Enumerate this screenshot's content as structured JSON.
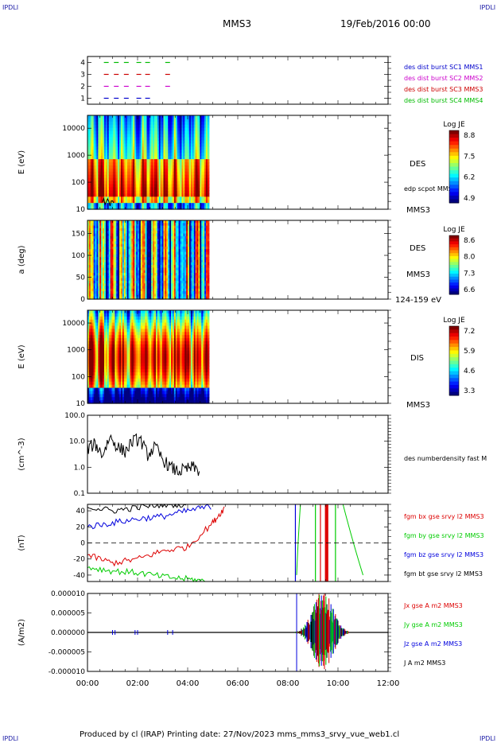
{
  "header": {
    "corner_tl": "IPDLI",
    "corner_tr": "IPDLI",
    "corner_bl": "IPDLI",
    "corner_br": "IPDLI",
    "spacecraft": "MMS3",
    "date": "19/Feb/2016 00:00"
  },
  "footer": {
    "text": "Produced by cl (IRAP)   Printing date: 27/Nov/2023   mms_mms3_srvy_vue_web1.cl"
  },
  "colors": {
    "sc1": "#0000cc",
    "sc2": "#cc00cc",
    "sc3": "#cc0000",
    "sc4": "#00bb00",
    "bx": "#dd0000",
    "by": "#00cc00",
    "bz": "#0000dd",
    "bt": "#000000"
  },
  "chart_data": [
    {
      "type": "scatter",
      "panel": "burst-availability",
      "yticks": [
        "1",
        "2",
        "3",
        "4"
      ],
      "ylim": [
        0.5,
        4.5
      ],
      "series": [
        {
          "name": "des dist burst SC1 MMS1",
          "y": 1,
          "x_hours": [
            0.75,
            1.15,
            1.55,
            2.05,
            2.4
          ]
        },
        {
          "name": "des dist burst SC2 MMS2",
          "y": 2,
          "x_hours": [
            0.75,
            1.15,
            1.55,
            2.05,
            2.4,
            3.2
          ]
        },
        {
          "name": "des dist burst SC3 MMS3",
          "y": 3,
          "x_hours": [
            0.75,
            1.15,
            1.55,
            2.05,
            2.4,
            3.2
          ]
        },
        {
          "name": "des dist burst SC4 MMS4",
          "y": 4,
          "x_hours": [
            0.75,
            1.15,
            1.55,
            2.05,
            2.4,
            3.2
          ]
        }
      ]
    },
    {
      "type": "heatmap",
      "panel": "des-energy",
      "ylabel": "E (eV)",
      "yscale": "log",
      "yticks": [
        "10",
        "100",
        "1000",
        "10000"
      ],
      "ylim": [
        10,
        30000
      ],
      "labels": [
        "DES",
        "edp scpot MMS3",
        "MMS3"
      ],
      "colorbar": {
        "title": "Log JE",
        "ticks": [
          "8.8",
          "7.5",
          "6.2",
          "4.9"
        ]
      },
      "data_end_hours": 4.85
    },
    {
      "type": "heatmap",
      "panel": "des-pitch-angle",
      "ylabel": "a (deg)",
      "yticks": [
        "0",
        "50",
        "100",
        "150"
      ],
      "ylim": [
        0,
        180
      ],
      "labels": [
        "DES",
        "MMS3",
        "124-159 eV"
      ],
      "colorbar": {
        "title": "Log JE",
        "ticks": [
          "8.6",
          "8.0",
          "7.3",
          "6.6"
        ]
      },
      "data_end_hours": 4.85
    },
    {
      "type": "heatmap",
      "panel": "dis-energy",
      "ylabel": "E (eV)",
      "yscale": "log",
      "yticks": [
        "10",
        "100",
        "1000",
        "10000"
      ],
      "ylim": [
        10,
        30000
      ],
      "labels": [
        "DIS",
        "MMS3"
      ],
      "colorbar": {
        "title": "Log JE",
        "ticks": [
          "7.2",
          "5.9",
          "4.6",
          "3.3"
        ]
      },
      "data_end_hours": 4.85
    },
    {
      "type": "line",
      "panel": "density",
      "ylabel": "(cm^-3)",
      "yscale": "log",
      "yticks": [
        "0.1",
        "1.0",
        "10.0",
        "100.0"
      ],
      "ylim": [
        0.1,
        100
      ],
      "series": [
        {
          "name": "des numberdensity fast M",
          "x_hours": [
            0.0,
            0.3,
            0.6,
            0.9,
            1.2,
            1.5,
            1.8,
            2.1,
            2.4,
            2.7,
            3.0,
            3.3,
            3.6,
            3.9,
            4.2,
            4.5
          ],
          "y": [
            5,
            8,
            3,
            15,
            6,
            4,
            10,
            12,
            3,
            6,
            2,
            1,
            0.7,
            0.8,
            1,
            0.7
          ]
        }
      ]
    },
    {
      "type": "line",
      "panel": "magnetic-field",
      "ylabel": "(nT)",
      "yticks": [
        "-40",
        "-20",
        "0",
        "20",
        "40"
      ],
      "ylim": [
        -48,
        48
      ],
      "series": [
        {
          "name": "fgm bx gse srvy l2 MMS3",
          "x_hours": [
            0.0,
            1.0,
            2.0,
            3.0,
            4.0,
            5.0,
            5.5
          ],
          "y": [
            -15,
            -25,
            -20,
            -10,
            -5,
            25,
            45
          ]
        },
        {
          "name": "fgm by gse srvy l2 MMS3",
          "x_hours": [
            0.0,
            1.0,
            2.0,
            3.0,
            4.0,
            4.8
          ],
          "y": [
            -30,
            -35,
            -37,
            -42,
            -45,
            -48
          ]
        },
        {
          "name": "fgm bz gse srvy l2 MMS3",
          "x_hours": [
            0.0,
            1.0,
            2.0,
            3.0,
            4.0,
            5.0
          ],
          "y": [
            20,
            25,
            30,
            33,
            40,
            46
          ]
        },
        {
          "name": "fgm bt gse srvy l2 MMS3",
          "x_hours": [
            0.0,
            1.0,
            2.0,
            3.0,
            4.0
          ],
          "y": [
            45,
            40,
            44,
            48,
            48
          ]
        }
      ]
    },
    {
      "type": "line",
      "panel": "current-density",
      "ylabel": "(A/m2)",
      "yticks": [
        "-0.000010",
        "-0.000005",
        "0.000000",
        "0.000005",
        "0.000010"
      ],
      "ylim": [
        -1e-05,
        1e-05
      ],
      "series": [
        {
          "name": "Jx gse A m2 MMS3"
        },
        {
          "name": "Jy gse A m2 MMS3"
        },
        {
          "name": "Jz gse A m2 MMS3"
        },
        {
          "name": "J A m2 MMS3"
        }
      ]
    }
  ],
  "xaxis": {
    "ticks": [
      "00:00",
      "02:00",
      "04:00",
      "06:00",
      "08:00",
      "10:00",
      "12:00"
    ]
  }
}
